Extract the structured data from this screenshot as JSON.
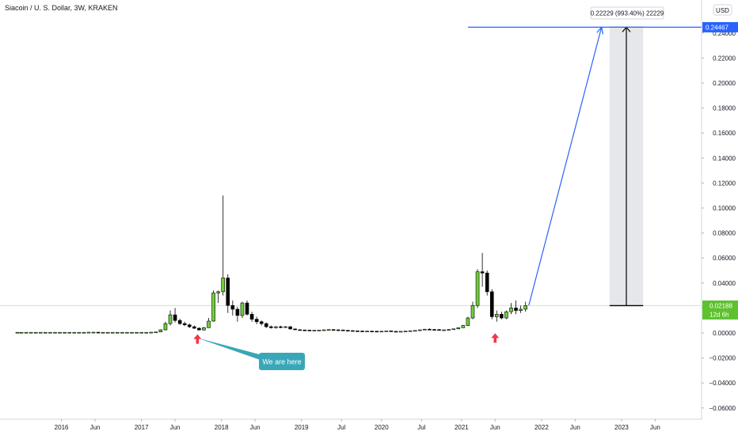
{
  "header": {
    "title": "Siacoin / U. S. Dollar, 3W, KRAKEN",
    "currency": "USD"
  },
  "colors": {
    "up": "#6fcf3b",
    "down": "#000000",
    "projection": "#2962ff",
    "price_line": "#cdeab0",
    "price_tag": "#5ec12e",
    "target_tag": "#2962ff",
    "arrow": "#f23645",
    "callout": "#3aa7b8"
  },
  "chart_data": {
    "type": "candlestick",
    "x_ticks": [
      {
        "t": 2016.0,
        "label": "2016"
      },
      {
        "t": 2016.42,
        "label": "Jun"
      },
      {
        "t": 2017.0,
        "label": "2017"
      },
      {
        "t": 2017.42,
        "label": "Jun"
      },
      {
        "t": 2018.0,
        "label": "2018"
      },
      {
        "t": 2018.42,
        "label": "Jun"
      },
      {
        "t": 2019.0,
        "label": "2019"
      },
      {
        "t": 2019.5,
        "label": "Jul"
      },
      {
        "t": 2020.0,
        "label": "2020"
      },
      {
        "t": 2020.5,
        "label": "Jul"
      },
      {
        "t": 2021.0,
        "label": "2021"
      },
      {
        "t": 2021.42,
        "label": "Jun"
      },
      {
        "t": 2022.0,
        "label": "2022"
      },
      {
        "t": 2022.42,
        "label": "Jun"
      },
      {
        "t": 2023.0,
        "label": "2023"
      },
      {
        "t": 2023.42,
        "label": "Jun"
      }
    ],
    "y_ticks": [
      -0.06,
      -0.04,
      -0.02,
      0.0,
      0.02,
      0.04,
      0.06,
      0.08,
      0.1,
      0.12,
      0.14,
      0.16,
      0.18,
      0.2,
      0.22,
      0.24
    ],
    "y_tick_labels": [
      "−0.06000",
      "−0.04000",
      "−0.02000",
      "0.00000",
      "0.02000",
      "0.04000",
      "0.06000",
      "0.08000",
      "0.10000",
      "0.12000",
      "0.14000",
      "0.16000",
      "0.18000",
      "0.20000",
      "0.22000",
      "0.24000"
    ],
    "ylim": [
      -0.067,
      0.27
    ],
    "xlim": [
      2015.45,
      2024.0
    ],
    "current_price": 0.02188,
    "current_price_label": "0.02188",
    "countdown_label": "12d 6h",
    "target_price": 0.24467,
    "target_price_label": "0.24467",
    "measure_label": "0.22229 (993.40%) 22229",
    "measure_t": [
      2022.85,
      2023.27
    ],
    "projection_line": [
      [
        2021.84,
        0.0219
      ],
      [
        2022.75,
        0.2447
      ]
    ],
    "arrows": [
      {
        "t": 2017.7,
        "y": -0.001
      },
      {
        "t": 2021.42,
        "y": -0.0002
      }
    ],
    "callout": {
      "text": "We are here",
      "anchor_t": 2017.7,
      "anchor_y": -0.004
    },
    "candles": [
      {
        "t": 2015.45,
        "o": 0.0005,
        "h": 0.0005,
        "l": 0.0005,
        "c": 0.0005
      },
      {
        "t": 2015.5,
        "o": 0.0005,
        "h": 0.0005,
        "l": 0.0005,
        "c": 0.0005
      },
      {
        "t": 2015.56,
        "o": 0.0005,
        "h": 0.0005,
        "l": 0.0005,
        "c": 0.0005
      },
      {
        "t": 2015.62,
        "o": 0.0005,
        "h": 0.0005,
        "l": 0.0005,
        "c": 0.0005
      },
      {
        "t": 2015.68,
        "o": 0.0005,
        "h": 0.0005,
        "l": 0.0005,
        "c": 0.0005
      },
      {
        "t": 2015.74,
        "o": 0.0005,
        "h": 0.0005,
        "l": 0.0005,
        "c": 0.0005
      },
      {
        "t": 2015.8,
        "o": 0.0005,
        "h": 0.0005,
        "l": 0.0005,
        "c": 0.0005
      },
      {
        "t": 2015.86,
        "o": 0.0005,
        "h": 0.0005,
        "l": 0.0005,
        "c": 0.0005
      },
      {
        "t": 2015.92,
        "o": 0.0005,
        "h": 0.0005,
        "l": 0.0005,
        "c": 0.0005
      },
      {
        "t": 2015.98,
        "o": 0.0005,
        "h": 0.0005,
        "l": 0.0005,
        "c": 0.0005
      },
      {
        "t": 2016.04,
        "o": 0.0005,
        "h": 0.0005,
        "l": 0.0005,
        "c": 0.0005
      },
      {
        "t": 2016.1,
        "o": 0.0005,
        "h": 0.0005,
        "l": 0.0005,
        "c": 0.0005
      },
      {
        "t": 2016.16,
        "o": 0.0005,
        "h": 0.0005,
        "l": 0.0005,
        "c": 0.0005
      },
      {
        "t": 2016.22,
        "o": 0.0005,
        "h": 0.0005,
        "l": 0.0005,
        "c": 0.0005
      },
      {
        "t": 2016.28,
        "o": 0.0005,
        "h": 0.0005,
        "l": 0.0005,
        "c": 0.0005
      },
      {
        "t": 2016.34,
        "o": 0.0005,
        "h": 0.0006,
        "l": 0.0004,
        "c": 0.0006
      },
      {
        "t": 2016.4,
        "o": 0.0006,
        "h": 0.0007,
        "l": 0.0005,
        "c": 0.0006
      },
      {
        "t": 2016.46,
        "o": 0.0006,
        "h": 0.0007,
        "l": 0.0005,
        "c": 0.0005
      },
      {
        "t": 2016.52,
        "o": 0.0005,
        "h": 0.0006,
        "l": 0.0004,
        "c": 0.0005
      },
      {
        "t": 2016.58,
        "o": 0.0005,
        "h": 0.0006,
        "l": 0.0004,
        "c": 0.0005
      },
      {
        "t": 2016.64,
        "o": 0.0005,
        "h": 0.0006,
        "l": 0.0004,
        "c": 0.0005
      },
      {
        "t": 2016.7,
        "o": 0.0005,
        "h": 0.0006,
        "l": 0.0004,
        "c": 0.0005
      },
      {
        "t": 2016.76,
        "o": 0.0005,
        "h": 0.0006,
        "l": 0.0004,
        "c": 0.0005
      },
      {
        "t": 2016.82,
        "o": 0.0005,
        "h": 0.0006,
        "l": 0.0004,
        "c": 0.0005
      },
      {
        "t": 2016.88,
        "o": 0.0005,
        "h": 0.0006,
        "l": 0.0004,
        "c": 0.0005
      },
      {
        "t": 2016.94,
        "o": 0.0005,
        "h": 0.0006,
        "l": 0.0004,
        "c": 0.0005
      },
      {
        "t": 2017.0,
        "o": 0.0005,
        "h": 0.0006,
        "l": 0.0004,
        "c": 0.0005
      },
      {
        "t": 2017.06,
        "o": 0.0005,
        "h": 0.0006,
        "l": 0.0004,
        "c": 0.0005
      },
      {
        "t": 2017.12,
        "o": 0.0005,
        "h": 0.0007,
        "l": 0.0004,
        "c": 0.0006
      },
      {
        "t": 2017.18,
        "o": 0.0006,
        "h": 0.0009,
        "l": 0.0005,
        "c": 0.0008
      },
      {
        "t": 2017.24,
        "o": 0.0008,
        "h": 0.003,
        "l": 0.0007,
        "c": 0.0025
      },
      {
        "t": 2017.3,
        "o": 0.0025,
        "h": 0.009,
        "l": 0.002,
        "c": 0.0075
      },
      {
        "t": 2017.36,
        "o": 0.0075,
        "h": 0.018,
        "l": 0.006,
        "c": 0.0145
      },
      {
        "t": 2017.42,
        "o": 0.0145,
        "h": 0.02,
        "l": 0.0085,
        "c": 0.01
      },
      {
        "t": 2017.48,
        "o": 0.01,
        "h": 0.0115,
        "l": 0.0065,
        "c": 0.0075
      },
      {
        "t": 2017.54,
        "o": 0.0075,
        "h": 0.009,
        "l": 0.0055,
        "c": 0.0065
      },
      {
        "t": 2017.6,
        "o": 0.0065,
        "h": 0.0075,
        "l": 0.004,
        "c": 0.005
      },
      {
        "t": 2017.66,
        "o": 0.005,
        "h": 0.006,
        "l": 0.0032,
        "c": 0.0038
      },
      {
        "t": 2017.72,
        "o": 0.0038,
        "h": 0.0045,
        "l": 0.002,
        "c": 0.0024
      },
      {
        "t": 2017.78,
        "o": 0.0024,
        "h": 0.0048,
        "l": 0.002,
        "c": 0.0042
      },
      {
        "t": 2017.84,
        "o": 0.0042,
        "h": 0.012,
        "l": 0.004,
        "c": 0.0095
      },
      {
        "t": 2017.9,
        "o": 0.0095,
        "h": 0.034,
        "l": 0.009,
        "c": 0.032
      },
      {
        "t": 2017.96,
        "o": 0.032,
        "h": 0.034,
        "l": 0.024,
        "c": 0.033
      },
      {
        "t": 2018.02,
        "o": 0.033,
        "h": 0.11,
        "l": 0.03,
        "c": 0.044
      },
      {
        "t": 2018.08,
        "o": 0.044,
        "h": 0.047,
        "l": 0.016,
        "c": 0.022
      },
      {
        "t": 2018.14,
        "o": 0.022,
        "h": 0.026,
        "l": 0.014,
        "c": 0.019
      },
      {
        "t": 2018.2,
        "o": 0.019,
        "h": 0.021,
        "l": 0.009,
        "c": 0.014
      },
      {
        "t": 2018.26,
        "o": 0.014,
        "h": 0.025,
        "l": 0.012,
        "c": 0.024
      },
      {
        "t": 2018.32,
        "o": 0.024,
        "h": 0.026,
        "l": 0.014,
        "c": 0.015
      },
      {
        "t": 2018.38,
        "o": 0.015,
        "h": 0.017,
        "l": 0.009,
        "c": 0.011
      },
      {
        "t": 2018.44,
        "o": 0.011,
        "h": 0.013,
        "l": 0.007,
        "c": 0.009
      },
      {
        "t": 2018.5,
        "o": 0.009,
        "h": 0.01,
        "l": 0.006,
        "c": 0.0075
      },
      {
        "t": 2018.56,
        "o": 0.0075,
        "h": 0.0085,
        "l": 0.004,
        "c": 0.005
      },
      {
        "t": 2018.62,
        "o": 0.005,
        "h": 0.006,
        "l": 0.0035,
        "c": 0.0042
      },
      {
        "t": 2018.68,
        "o": 0.0042,
        "h": 0.0055,
        "l": 0.0035,
        "c": 0.005
      },
      {
        "t": 2018.74,
        "o": 0.005,
        "h": 0.0058,
        "l": 0.0038,
        "c": 0.0045
      },
      {
        "t": 2018.8,
        "o": 0.0045,
        "h": 0.0055,
        "l": 0.004,
        "c": 0.005
      },
      {
        "t": 2018.86,
        "o": 0.005,
        "h": 0.0055,
        "l": 0.0028,
        "c": 0.0032
      },
      {
        "t": 2018.92,
        "o": 0.0032,
        "h": 0.0036,
        "l": 0.0022,
        "c": 0.0026
      },
      {
        "t": 2018.98,
        "o": 0.0026,
        "h": 0.0029,
        "l": 0.0022,
        "c": 0.0024
      },
      {
        "t": 2019.04,
        "o": 0.0024,
        "h": 0.0026,
        "l": 0.0021,
        "c": 0.0023
      },
      {
        "t": 2019.1,
        "o": 0.0023,
        "h": 0.0025,
        "l": 0.002,
        "c": 0.0022
      },
      {
        "t": 2019.16,
        "o": 0.0022,
        "h": 0.0024,
        "l": 0.002,
        "c": 0.0022
      },
      {
        "t": 2019.22,
        "o": 0.0022,
        "h": 0.0024,
        "l": 0.002,
        "c": 0.0023
      },
      {
        "t": 2019.28,
        "o": 0.0023,
        "h": 0.0027,
        "l": 0.0021,
        "c": 0.0025
      },
      {
        "t": 2019.34,
        "o": 0.0025,
        "h": 0.0029,
        "l": 0.0022,
        "c": 0.0027
      },
      {
        "t": 2019.4,
        "o": 0.0027,
        "h": 0.003,
        "l": 0.0022,
        "c": 0.0025
      },
      {
        "t": 2019.46,
        "o": 0.0025,
        "h": 0.0029,
        "l": 0.0021,
        "c": 0.0024
      },
      {
        "t": 2019.52,
        "o": 0.0024,
        "h": 0.0026,
        "l": 0.0019,
        "c": 0.0021
      },
      {
        "t": 2019.58,
        "o": 0.0021,
        "h": 0.0023,
        "l": 0.0017,
        "c": 0.0019
      },
      {
        "t": 2019.64,
        "o": 0.0019,
        "h": 0.002,
        "l": 0.0015,
        "c": 0.0017
      },
      {
        "t": 2019.7,
        "o": 0.0017,
        "h": 0.0019,
        "l": 0.0014,
        "c": 0.0016
      },
      {
        "t": 2019.76,
        "o": 0.0016,
        "h": 0.0018,
        "l": 0.0013,
        "c": 0.0015
      },
      {
        "t": 2019.82,
        "o": 0.0015,
        "h": 0.0017,
        "l": 0.0013,
        "c": 0.0015
      },
      {
        "t": 2019.88,
        "o": 0.0015,
        "h": 0.0016,
        "l": 0.0012,
        "c": 0.0014
      },
      {
        "t": 2019.94,
        "o": 0.0014,
        "h": 0.0015,
        "l": 0.0011,
        "c": 0.0012
      },
      {
        "t": 2020.0,
        "o": 0.0012,
        "h": 0.0015,
        "l": 0.0011,
        "c": 0.0014
      },
      {
        "t": 2020.06,
        "o": 0.0014,
        "h": 0.0018,
        "l": 0.0013,
        "c": 0.0017
      },
      {
        "t": 2020.12,
        "o": 0.0017,
        "h": 0.0019,
        "l": 0.0011,
        "c": 0.0013
      },
      {
        "t": 2020.18,
        "o": 0.0013,
        "h": 0.0015,
        "l": 0.0009,
        "c": 0.0011
      },
      {
        "t": 2020.24,
        "o": 0.0011,
        "h": 0.0014,
        "l": 0.001,
        "c": 0.0013
      },
      {
        "t": 2020.3,
        "o": 0.0013,
        "h": 0.0016,
        "l": 0.0012,
        "c": 0.0015
      },
      {
        "t": 2020.36,
        "o": 0.0015,
        "h": 0.0019,
        "l": 0.0014,
        "c": 0.0018
      },
      {
        "t": 2020.42,
        "o": 0.0018,
        "h": 0.0022,
        "l": 0.0016,
        "c": 0.002
      },
      {
        "t": 2020.48,
        "o": 0.002,
        "h": 0.0027,
        "l": 0.0018,
        "c": 0.0025
      },
      {
        "t": 2020.54,
        "o": 0.0025,
        "h": 0.0033,
        "l": 0.0023,
        "c": 0.003
      },
      {
        "t": 2020.6,
        "o": 0.003,
        "h": 0.0036,
        "l": 0.0025,
        "c": 0.0028
      },
      {
        "t": 2020.66,
        "o": 0.0028,
        "h": 0.0032,
        "l": 0.0024,
        "c": 0.0027
      },
      {
        "t": 2020.72,
        "o": 0.0027,
        "h": 0.003,
        "l": 0.0022,
        "c": 0.0024
      },
      {
        "t": 2020.78,
        "o": 0.0024,
        "h": 0.0027,
        "l": 0.0021,
        "c": 0.0025
      },
      {
        "t": 2020.84,
        "o": 0.0025,
        "h": 0.003,
        "l": 0.0023,
        "c": 0.0028
      },
      {
        "t": 2020.9,
        "o": 0.0028,
        "h": 0.0035,
        "l": 0.0026,
        "c": 0.0033
      },
      {
        "t": 2020.96,
        "o": 0.0033,
        "h": 0.0045,
        "l": 0.003,
        "c": 0.0042
      },
      {
        "t": 2021.02,
        "o": 0.0042,
        "h": 0.0065,
        "l": 0.004,
        "c": 0.006
      },
      {
        "t": 2021.08,
        "o": 0.006,
        "h": 0.013,
        "l": 0.0055,
        "c": 0.012
      },
      {
        "t": 2021.14,
        "o": 0.012,
        "h": 0.025,
        "l": 0.011,
        "c": 0.022
      },
      {
        "t": 2021.2,
        "o": 0.022,
        "h": 0.051,
        "l": 0.02,
        "c": 0.049
      },
      {
        "t": 2021.26,
        "o": 0.049,
        "h": 0.064,
        "l": 0.037,
        "c": 0.048
      },
      {
        "t": 2021.32,
        "o": 0.048,
        "h": 0.05,
        "l": 0.03,
        "c": 0.033
      },
      {
        "t": 2021.38,
        "o": 0.033,
        "h": 0.035,
        "l": 0.011,
        "c": 0.013
      },
      {
        "t": 2021.44,
        "o": 0.013,
        "h": 0.018,
        "l": 0.009,
        "c": 0.015
      },
      {
        "t": 2021.5,
        "o": 0.015,
        "h": 0.017,
        "l": 0.011,
        "c": 0.012
      },
      {
        "t": 2021.56,
        "o": 0.012,
        "h": 0.018,
        "l": 0.011,
        "c": 0.017
      },
      {
        "t": 2021.62,
        "o": 0.017,
        "h": 0.024,
        "l": 0.015,
        "c": 0.02
      },
      {
        "t": 2021.68,
        "o": 0.02,
        "h": 0.026,
        "l": 0.015,
        "c": 0.018
      },
      {
        "t": 2021.74,
        "o": 0.018,
        "h": 0.022,
        "l": 0.016,
        "c": 0.019
      },
      {
        "t": 2021.8,
        "o": 0.019,
        "h": 0.025,
        "l": 0.017,
        "c": 0.0219
      }
    ]
  }
}
